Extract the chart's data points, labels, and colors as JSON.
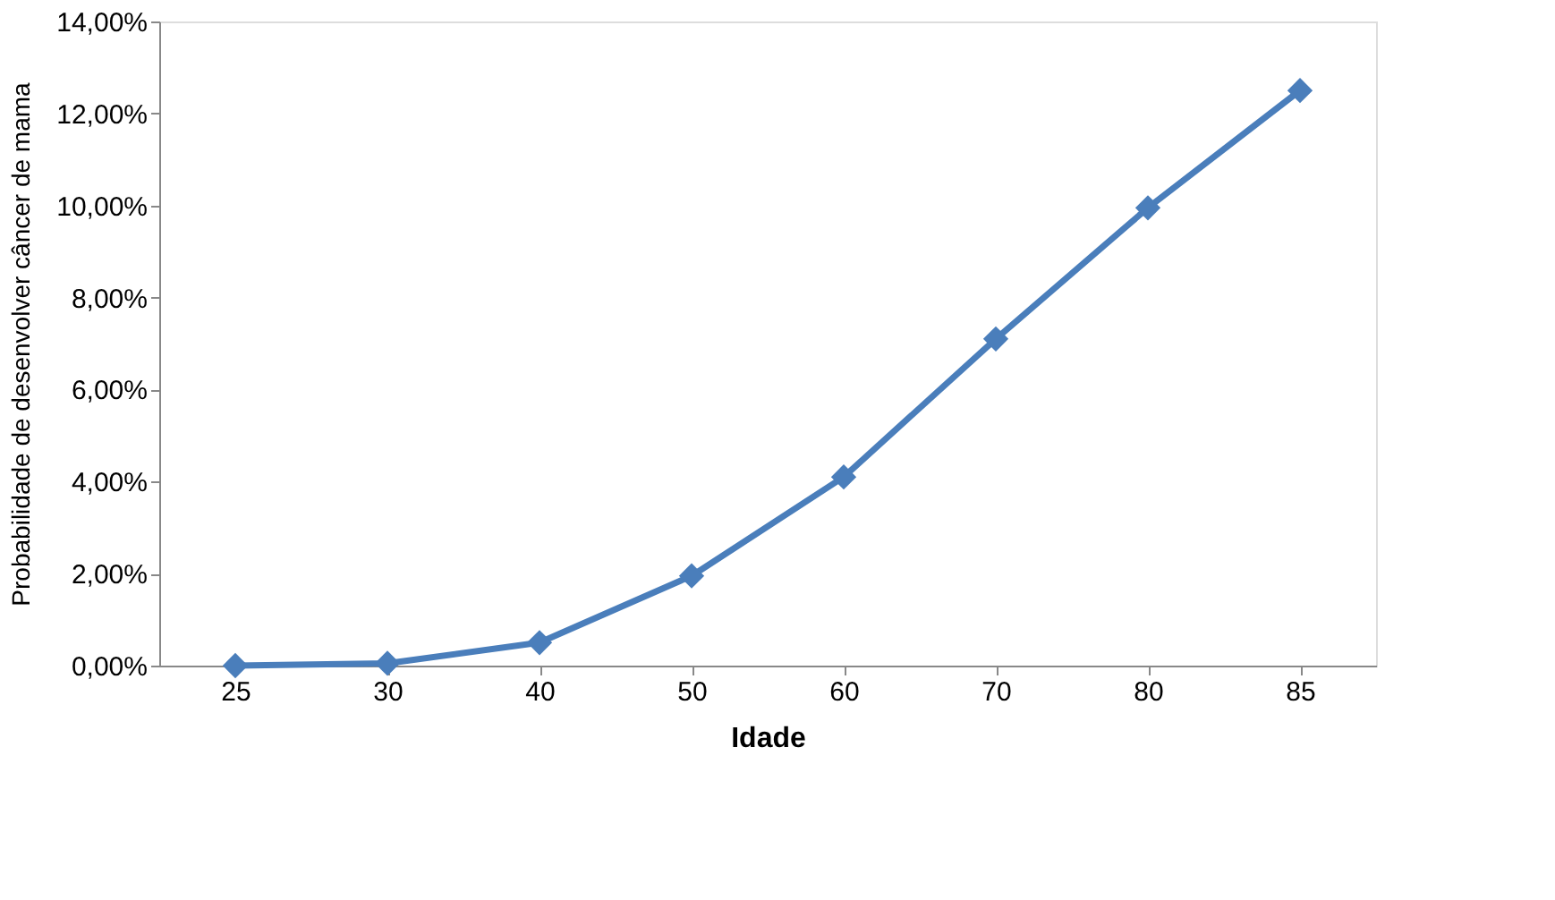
{
  "chart_data": {
    "type": "line",
    "xlabel": "Idade",
    "ylabel": "Probabilidade de desenvolver câncer de mama",
    "categories": [
      "25",
      "30",
      "40",
      "50",
      "60",
      "70",
      "80",
      "85"
    ],
    "series": [
      {
        "color": "#4a7ebb",
        "values": [
          0,
          0.05,
          0.5,
          1.95,
          4.1,
          7.1,
          9.95,
          12.5
        ]
      }
    ],
    "ylim": [
      0,
      14
    ],
    "yticks": [
      {
        "value": 0,
        "label": "0,00%"
      },
      {
        "value": 2,
        "label": "2,00%"
      },
      {
        "value": 4,
        "label": "4,00%"
      },
      {
        "value": 6,
        "label": "6,00%"
      },
      {
        "value": 8,
        "label": "8,00%"
      },
      {
        "value": 10,
        "label": "10,00%"
      },
      {
        "value": 12,
        "label": "12,00%"
      },
      {
        "value": 14,
        "label": "14,00%"
      }
    ],
    "grid": false,
    "marker": "diamond",
    "line_style": "solid"
  }
}
